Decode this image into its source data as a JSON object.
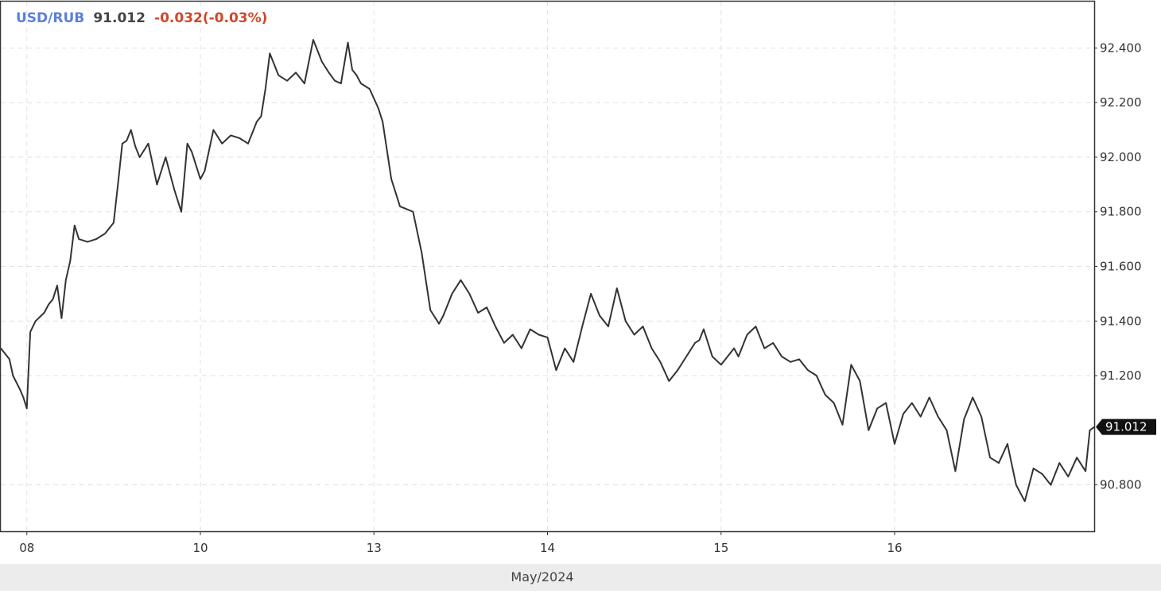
{
  "header": {
    "pair": "USD/RUB",
    "price": "91.012",
    "change": "-0.032(-0.03%)"
  },
  "colors": {
    "pair": "#5b7fe0",
    "change": "#d0472a",
    "line": "#333333",
    "grid": "#e2e2e2",
    "footer_bg": "#ececec"
  },
  "footer": {
    "month": "May/2024"
  },
  "last_value_label": "91.012",
  "chart_data": {
    "type": "line",
    "title": "USD/RUB",
    "ylim": [
      90.63,
      92.57
    ],
    "grid": true,
    "y_ticks": [
      "92.400",
      "92.200",
      "92.000",
      "91.800",
      "91.600",
      "91.400",
      "91.200",
      "90.800"
    ],
    "y_tick_values": [
      92.4,
      92.2,
      92.0,
      91.8,
      91.6,
      91.4,
      91.2,
      90.8
    ],
    "x_ticks": [
      "08",
      "10",
      "13",
      "14",
      "15",
      "16"
    ],
    "x_tick_positions": [
      0.3,
      2.3,
      4.3,
      6.3,
      8.3,
      10.3
    ],
    "xlim": [
      0,
      12.6
    ],
    "last_value": 91.012,
    "x": [
      0,
      0.05,
      0.1,
      0.14,
      0.22,
      0.26,
      0.3,
      0.34,
      0.4,
      0.5,
      0.55,
      0.6,
      0.65,
      0.7,
      0.75,
      0.8,
      0.85,
      0.9,
      1.0,
      1.1,
      1.2,
      1.3,
      1.35,
      1.4,
      1.45,
      1.5,
      1.55,
      1.6,
      1.7,
      1.8,
      1.9,
      2.0,
      2.08,
      2.15,
      2.2,
      2.3,
      2.35,
      2.45,
      2.55,
      2.65,
      2.75,
      2.85,
      2.95,
      3.0,
      3.05,
      3.1,
      3.2,
      3.3,
      3.4,
      3.5,
      3.6,
      3.7,
      3.78,
      3.85,
      3.92,
      4.0,
      4.05,
      4.1,
      4.15,
      4.25,
      4.35,
      4.4,
      4.5,
      4.6,
      4.75,
      4.85,
      4.95,
      5.05,
      5.1,
      5.2,
      5.3,
      5.4,
      5.5,
      5.6,
      5.7,
      5.8,
      5.9,
      6.0,
      6.1,
      6.2,
      6.3,
      6.4,
      6.5,
      6.6,
      6.7,
      6.8,
      6.9,
      7.0,
      7.1,
      7.2,
      7.3,
      7.4,
      7.5,
      7.6,
      7.7,
      7.8,
      7.9,
      8.0,
      8.05,
      8.1,
      8.2,
      8.3,
      8.4,
      8.45,
      8.5,
      8.6,
      8.7,
      8.8,
      8.9,
      9.0,
      9.1,
      9.2,
      9.3,
      9.4,
      9.5,
      9.6,
      9.7,
      9.8,
      9.9,
      10.0,
      10.1,
      10.2,
      10.3,
      10.4,
      10.5,
      10.6,
      10.7,
      10.8,
      10.9,
      11.0,
      11.1,
      11.2,
      11.3,
      11.4,
      11.5,
      11.6,
      11.7,
      11.8,
      11.9,
      12.0,
      12.1,
      12.2,
      12.3,
      12.4,
      12.5,
      12.55,
      12.6
    ],
    "y": [
      91.3,
      91.28,
      91.26,
      91.2,
      91.15,
      91.12,
      91.08,
      91.36,
      91.4,
      91.43,
      91.46,
      91.48,
      91.53,
      91.41,
      91.55,
      91.62,
      91.75,
      91.7,
      91.69,
      91.7,
      91.72,
      91.76,
      91.9,
      92.05,
      92.06,
      92.1,
      92.04,
      92.0,
      92.05,
      91.9,
      92.0,
      91.88,
      91.8,
      92.05,
      92.02,
      91.92,
      91.95,
      92.1,
      92.05,
      92.08,
      92.07,
      92.05,
      92.13,
      92.15,
      92.25,
      92.38,
      92.3,
      92.28,
      92.31,
      92.27,
      92.43,
      92.35,
      92.31,
      92.28,
      92.27,
      92.42,
      92.32,
      92.3,
      92.27,
      92.25,
      92.18,
      92.13,
      91.92,
      91.82,
      91.8,
      91.65,
      91.44,
      91.39,
      91.42,
      91.5,
      91.55,
      91.5,
      91.43,
      91.45,
      91.38,
      91.32,
      91.35,
      91.3,
      91.37,
      91.35,
      91.34,
      91.22,
      91.3,
      91.25,
      91.38,
      91.5,
      91.42,
      91.38,
      91.52,
      91.4,
      91.35,
      91.38,
      91.3,
      91.25,
      91.18,
      91.22,
      91.27,
      91.32,
      91.33,
      91.37,
      91.27,
      91.24,
      91.28,
      91.3,
      91.27,
      91.35,
      91.38,
      91.3,
      91.32,
      91.27,
      91.25,
      91.26,
      91.22,
      91.2,
      91.13,
      91.1,
      91.02,
      91.24,
      91.18,
      91.0,
      91.08,
      91.1,
      90.95,
      91.06,
      91.1,
      91.05,
      91.12,
      91.05,
      91.0,
      90.85,
      91.04,
      91.12,
      91.05,
      90.9,
      90.88,
      90.95,
      90.8,
      90.74,
      90.86,
      90.84,
      90.8,
      90.88,
      90.83,
      90.9,
      90.85,
      91.0,
      91.012
    ]
  }
}
